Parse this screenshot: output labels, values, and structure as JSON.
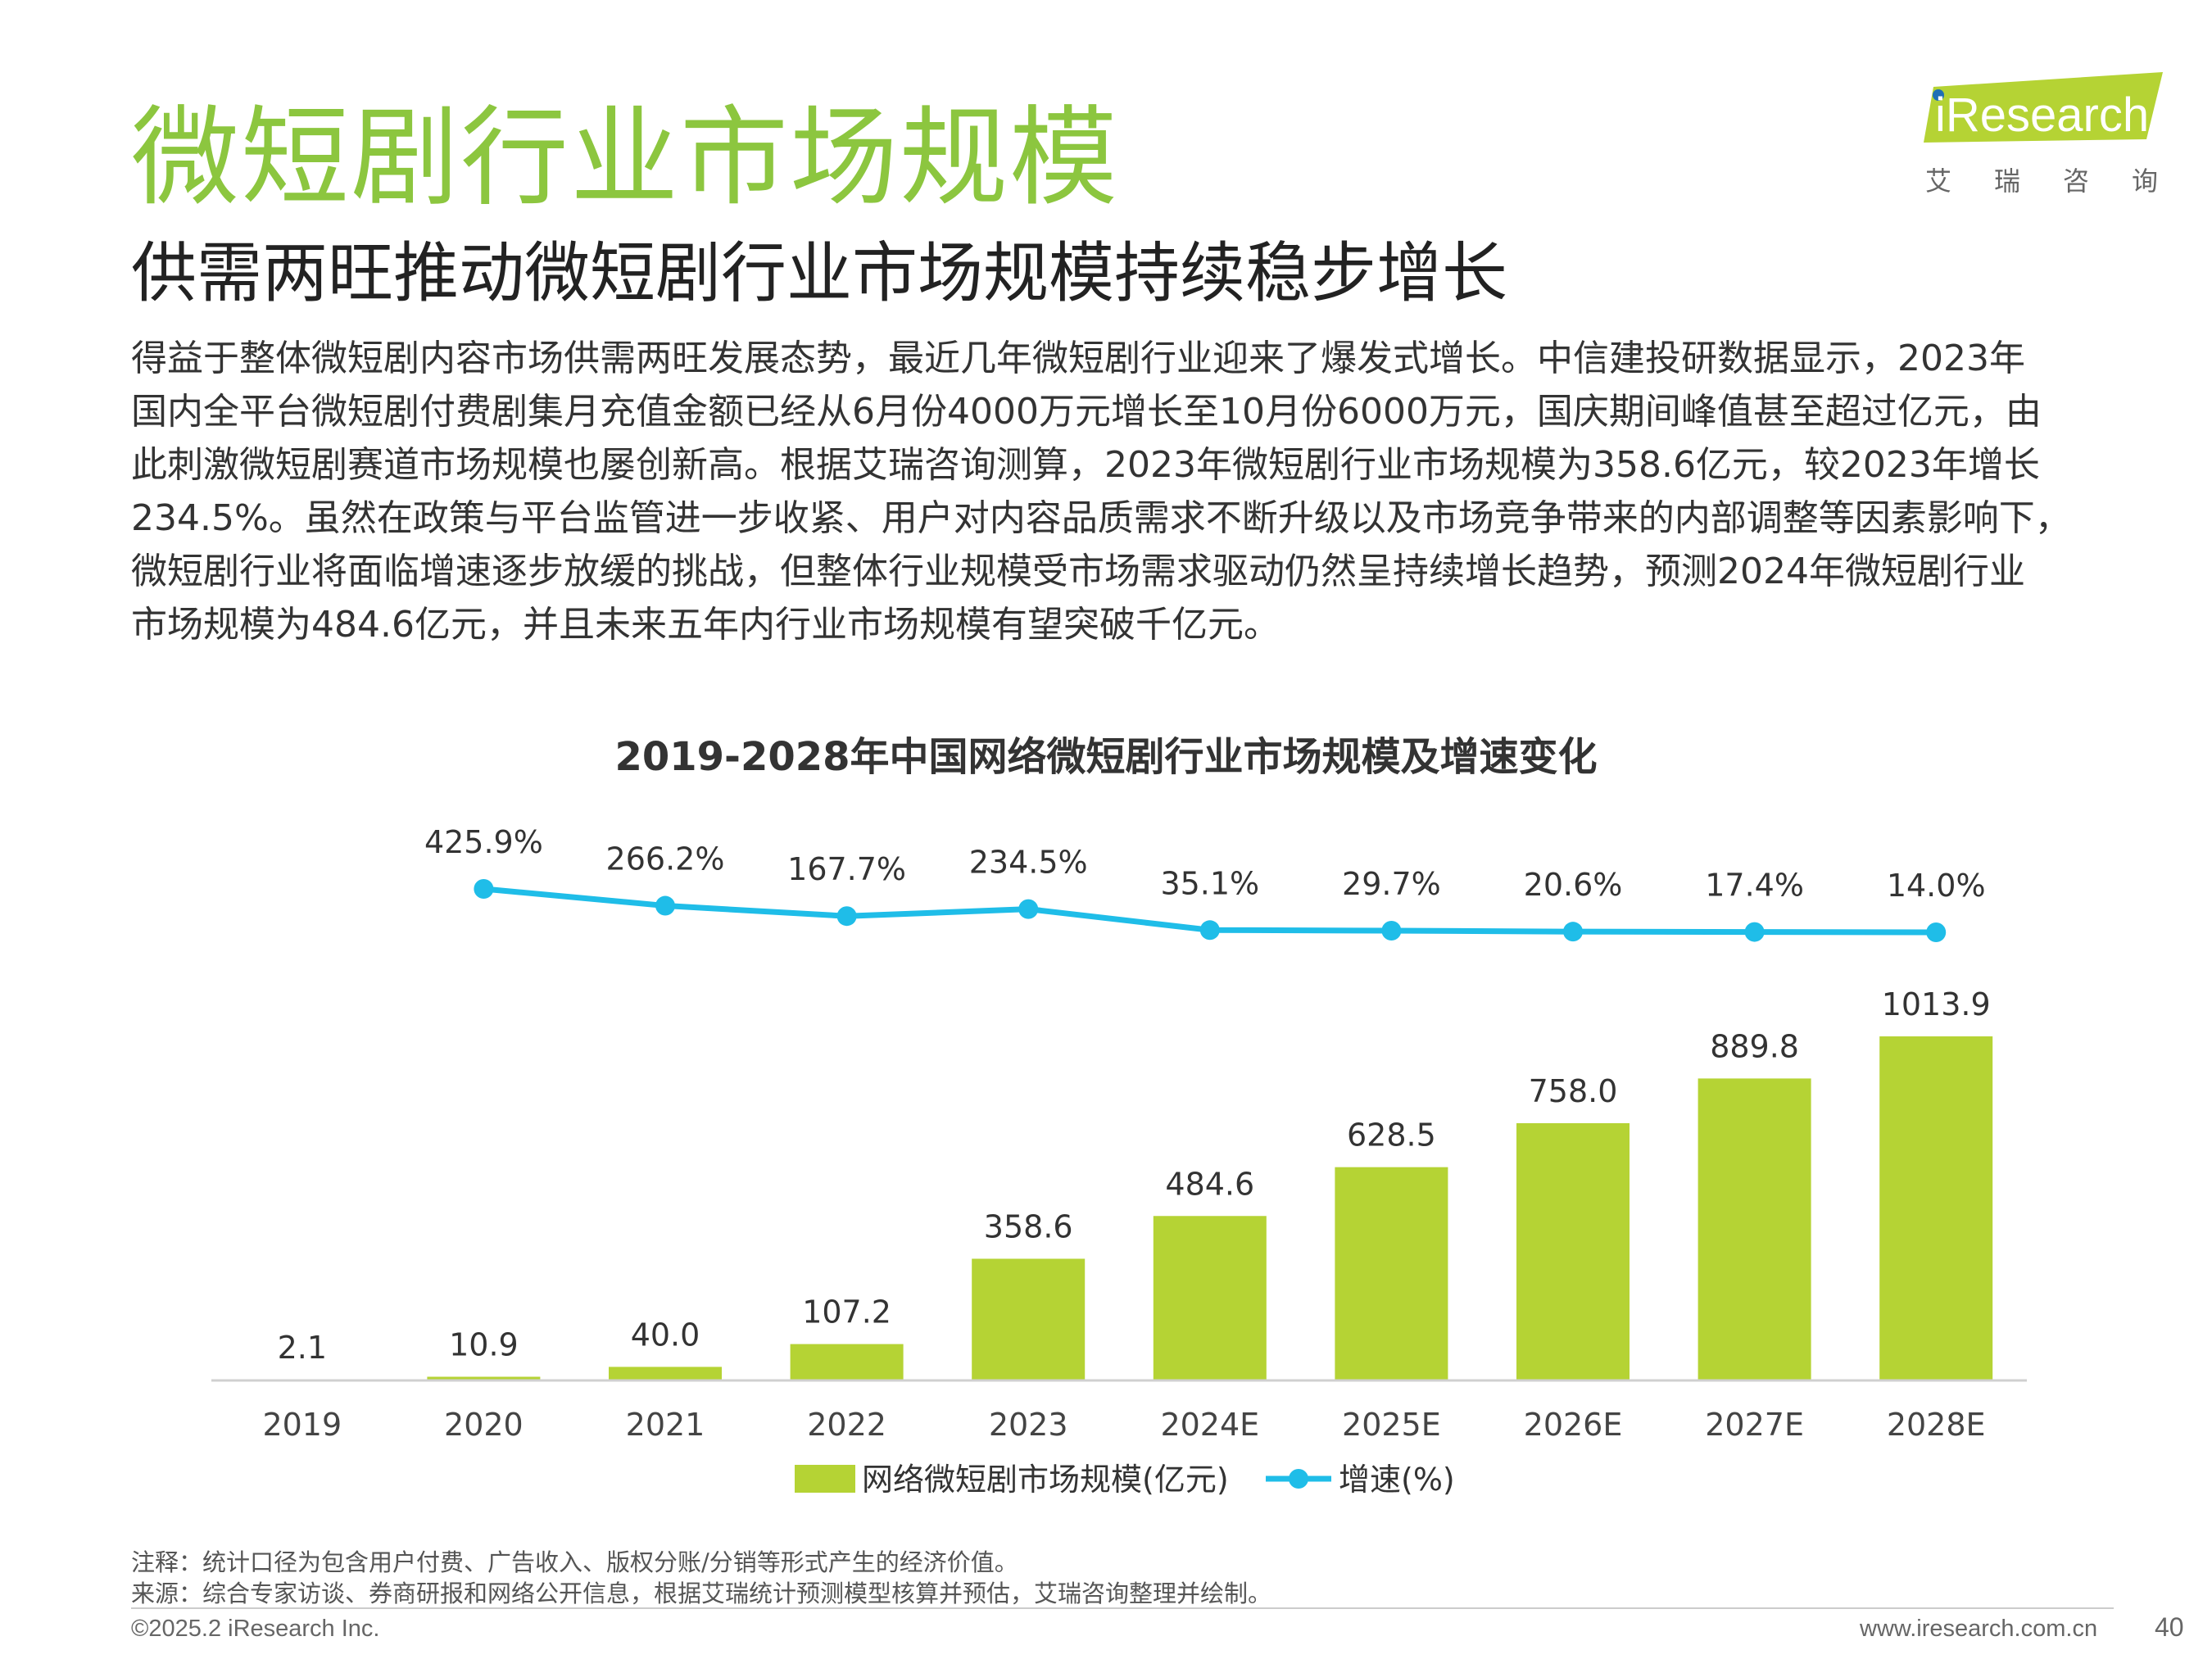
{
  "header": {
    "title": "微短剧行业市场规模",
    "subtitle": "供需两旺推动微短剧行业市场规模持续稳步增长",
    "logo_text": "iResearch",
    "logo_cn": "艾瑞咨询",
    "logo_color": "#b5d334",
    "logo_dot_color": "#1f6fb5"
  },
  "body": {
    "lines": [
      "得益于整体微短剧内容市场供需两旺发展态势，最近几年微短剧行业迎来了爆发式增长。中信建投研数据显示，2023年",
      "国内全平台微短剧付费剧集月充值金额已经从6月份4000万元增长至10月份6000万元，国庆期间峰值甚至超过亿元，由",
      "此刺激微短剧赛道市场规模也屡创新高。根据艾瑞咨询测算，2023年微短剧行业市场规模为358.6亿元，较2023年增长",
      "234.5%。虽然在政策与平台监管进一步收紧、用户对内容品质需求不断升级以及市场竞争带来的内部调整等因素影响下，",
      "微短剧行业将面临增速逐步放缓的挑战，但整体行业规模受市场需求驱动仍然呈持续增长趋势，预测2024年微短剧行业",
      "市场规模为484.6亿元，并且未来五年内行业市场规模有望突破千亿元。"
    ]
  },
  "chart_data": {
    "type": "bar",
    "title": "2019-2028年中国网络微短剧行业市场规模及增速变化",
    "categories": [
      "2019",
      "2020",
      "2021",
      "2022",
      "2023",
      "2024E",
      "2025E",
      "2026E",
      "2027E",
      "2028E"
    ],
    "series": [
      {
        "name": "网络微短剧市场规模(亿元)",
        "type": "bar",
        "color": "#b5d334",
        "values": [
          2.1,
          10.9,
          40.0,
          107.2,
          358.6,
          484.6,
          628.5,
          758.0,
          889.8,
          1013.9
        ],
        "labels": [
          "2.1",
          "10.9",
          "40.0",
          "107.2",
          "358.6",
          "484.6",
          "628.5",
          "758.0",
          "889.8",
          "1013.9"
        ]
      },
      {
        "name": "增速(%)",
        "type": "line",
        "color": "#1fbde8",
        "values": [
          null,
          425.9,
          266.2,
          167.7,
          234.5,
          35.1,
          29.7,
          20.6,
          17.4,
          14.0
        ],
        "labels": [
          "",
          "425.9%",
          "266.2%",
          "167.7%",
          "234.5%",
          "35.1%",
          "29.7%",
          "20.6%",
          "17.4%",
          "14.0%"
        ]
      }
    ],
    "legend_position": "bottom",
    "grid": false
  },
  "notes": {
    "note": "注释：统计口径为包含用户付费、广告收入、版权分账/分销等形式产生的经济价值。",
    "source": "来源：综合专家访谈、券商研报和网络公开信息，根据艾瑞统计预测模型核算并预估，艾瑞咨询整理并绘制。"
  },
  "footer": {
    "copyright": "©2025.2 iResearch Inc.",
    "website": "www.iresearch.com.cn",
    "page_number": "40"
  }
}
